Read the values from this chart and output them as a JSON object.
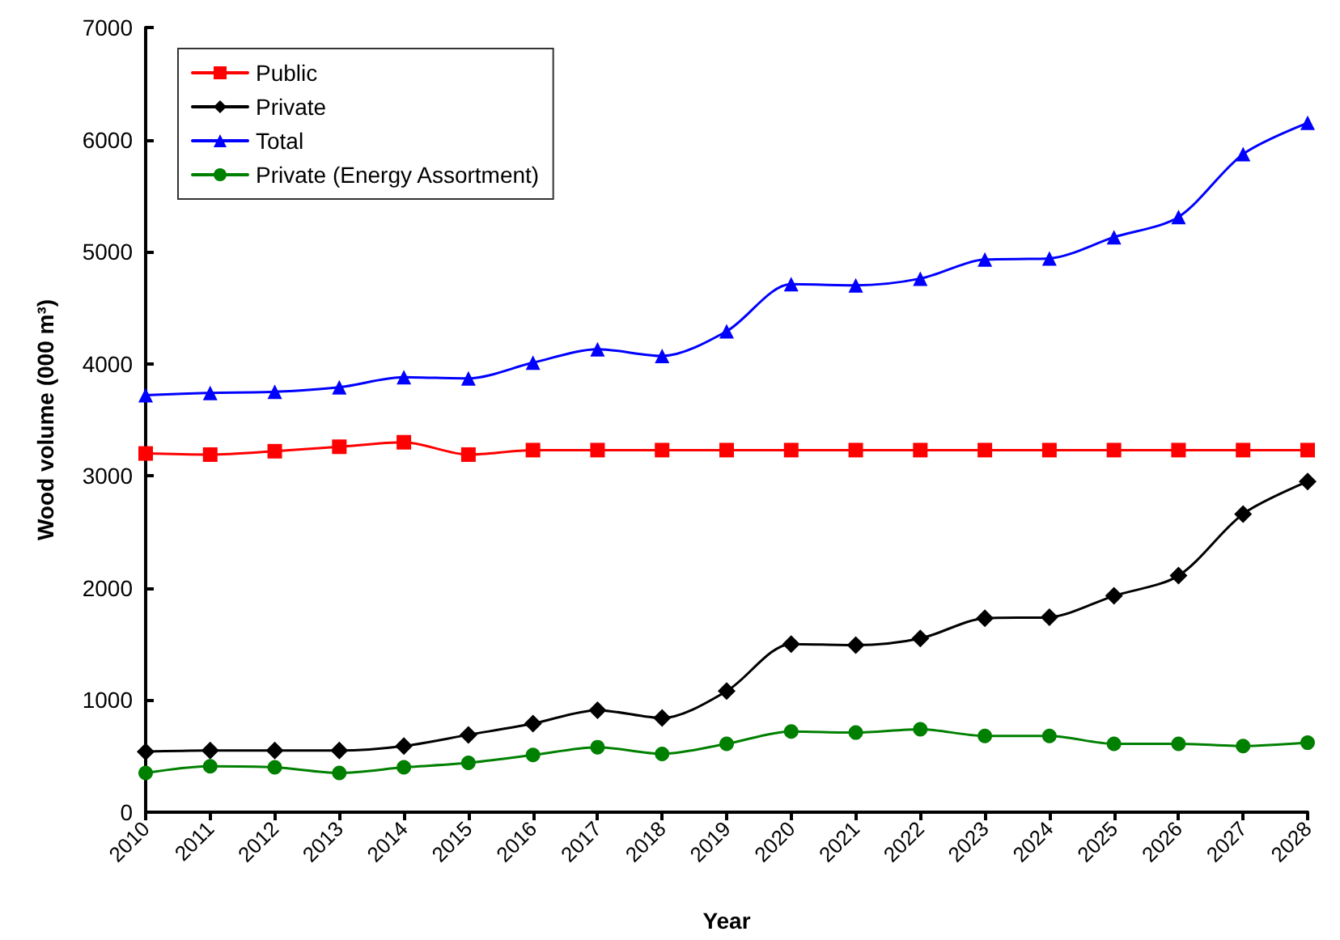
{
  "chart_data": {
    "type": "line",
    "xlabel": "Year",
    "ylabel": "Wood volume (000 m³)",
    "categories": [
      "2010",
      "2011",
      "2012",
      "2013",
      "2014",
      "2015",
      "2016",
      "2017",
      "2018",
      "2019",
      "2020",
      "2021",
      "2022",
      "2023",
      "2024",
      "2025",
      "2026",
      "2027",
      "2028"
    ],
    "series": [
      {
        "name": "Public",
        "color": "#ff0000",
        "marker": "square",
        "values": [
          3200,
          3190,
          3220,
          3260,
          3300,
          3190,
          3230,
          3230,
          3230,
          3230,
          3230,
          3230,
          3230,
          3230,
          3230,
          3230,
          3230,
          3230,
          3230
        ]
      },
      {
        "name": "Private",
        "color": "#000000",
        "marker": "diamond",
        "values": [
          540,
          550,
          550,
          550,
          590,
          690,
          790,
          910,
          840,
          1080,
          1500,
          1490,
          1550,
          1730,
          1740,
          1930,
          2110,
          2660,
          2950
        ]
      },
      {
        "name": "Total",
        "color": "#0000ff",
        "marker": "triangle",
        "values": [
          3720,
          3740,
          3750,
          3790,
          3880,
          3870,
          4010,
          4130,
          4070,
          4290,
          4710,
          4700,
          4760,
          4930,
          4940,
          5130,
          5310,
          5870,
          6150
        ]
      },
      {
        "name": "Private (Energy Assortment)",
        "color": "#008000",
        "marker": "circle",
        "values": [
          350,
          410,
          400,
          350,
          400,
          440,
          510,
          580,
          520,
          610,
          720,
          710,
          740,
          680,
          680,
          610,
          610,
          590,
          620
        ]
      }
    ],
    "ylim": [
      0,
      7000
    ],
    "yticks": [
      0,
      1000,
      2000,
      3000,
      4000,
      5000,
      6000,
      7000
    ],
    "grid": false,
    "legend": "top left",
    "line_style": "solid"
  }
}
